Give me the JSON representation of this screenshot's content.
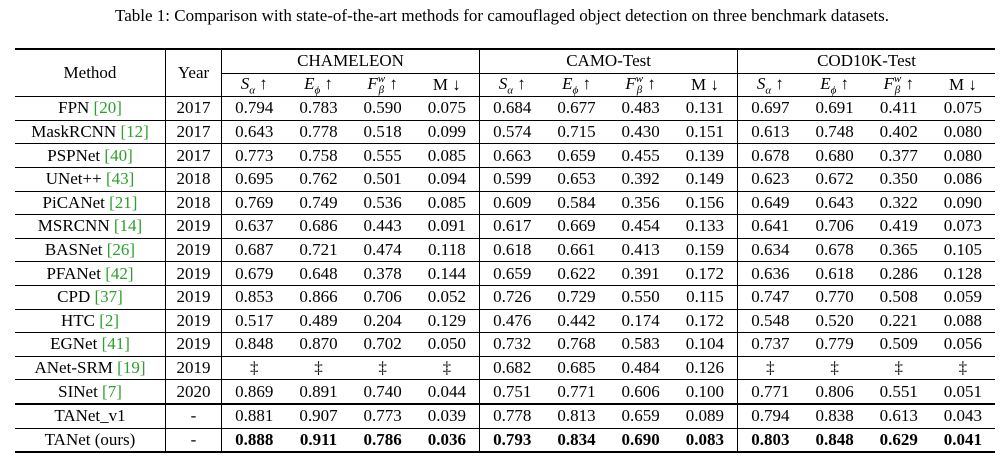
{
  "caption": "Table 1: Comparison with state-of-the-art methods for camouflaged object detection on three benchmark datasets.",
  "header": {
    "method": "Method",
    "year": "Year",
    "datasets": [
      "CHAMELEON",
      "CAMO-Test",
      "COD10K-Test"
    ],
    "metrics": [
      {
        "base": "S",
        "sub": "α",
        "arrow": "↑"
      },
      {
        "base": "E",
        "sub": "ϕ",
        "arrow": "↑"
      },
      {
        "base": "F",
        "sub": "β",
        "sup": "w",
        "arrow": "↑"
      },
      {
        "base": "M",
        "arrow": "↓"
      }
    ]
  },
  "rows": [
    {
      "method": "FPN",
      "ref": "[20]",
      "year": "2017",
      "values": [
        "0.794",
        "0.783",
        "0.590",
        "0.075",
        "0.684",
        "0.677",
        "0.483",
        "0.131",
        "0.697",
        "0.691",
        "0.411",
        "0.075"
      ]
    },
    {
      "method": "MaskRCNN",
      "ref": "[12]",
      "year": "2017",
      "values": [
        "0.643",
        "0.778",
        "0.518",
        "0.099",
        "0.574",
        "0.715",
        "0.430",
        "0.151",
        "0.613",
        "0.748",
        "0.402",
        "0.080"
      ]
    },
    {
      "method": "PSPNet",
      "ref": "[40]",
      "year": "2017",
      "values": [
        "0.773",
        "0.758",
        "0.555",
        "0.085",
        "0.663",
        "0.659",
        "0.455",
        "0.139",
        "0.678",
        "0.680",
        "0.377",
        "0.080"
      ]
    },
    {
      "method": "UNet++",
      "ref": "[43]",
      "year": "2018",
      "values": [
        "0.695",
        "0.762",
        "0.501",
        "0.094",
        "0.599",
        "0.653",
        "0.392",
        "0.149",
        "0.623",
        "0.672",
        "0.350",
        "0.086"
      ]
    },
    {
      "method": "PiCANet",
      "ref": "[21]",
      "year": "2018",
      "values": [
        "0.769",
        "0.749",
        "0.536",
        "0.085",
        "0.609",
        "0.584",
        "0.356",
        "0.156",
        "0.649",
        "0.643",
        "0.322",
        "0.090"
      ]
    },
    {
      "method": "MSRCNN",
      "ref": "[14]",
      "year": "2019",
      "values": [
        "0.637",
        "0.686",
        "0.443",
        "0.091",
        "0.617",
        "0.669",
        "0.454",
        "0.133",
        "0.641",
        "0.706",
        "0.419",
        "0.073"
      ]
    },
    {
      "method": "BASNet",
      "ref": "[26]",
      "year": "2019",
      "values": [
        "0.687",
        "0.721",
        "0.474",
        "0.118",
        "0.618",
        "0.661",
        "0.413",
        "0.159",
        "0.634",
        "0.678",
        "0.365",
        "0.105"
      ]
    },
    {
      "method": "PFANet",
      "ref": "[42]",
      "year": "2019",
      "values": [
        "0.679",
        "0.648",
        "0.378",
        "0.144",
        "0.659",
        "0.622",
        "0.391",
        "0.172",
        "0.636",
        "0.618",
        "0.286",
        "0.128"
      ]
    },
    {
      "method": "CPD",
      "ref": "[37]",
      "year": "2019",
      "values": [
        "0.853",
        "0.866",
        "0.706",
        "0.052",
        "0.726",
        "0.729",
        "0.550",
        "0.115",
        "0.747",
        "0.770",
        "0.508",
        "0.059"
      ]
    },
    {
      "method": "HTC",
      "ref": "[2]",
      "year": "2019",
      "values": [
        "0.517",
        "0.489",
        "0.204",
        "0.129",
        "0.476",
        "0.442",
        "0.174",
        "0.172",
        "0.548",
        "0.520",
        "0.221",
        "0.088"
      ]
    },
    {
      "method": "EGNet",
      "ref": "[41]",
      "year": "2019",
      "values": [
        "0.848",
        "0.870",
        "0.702",
        "0.050",
        "0.732",
        "0.768",
        "0.583",
        "0.104",
        "0.737",
        "0.779",
        "0.509",
        "0.056"
      ]
    },
    {
      "method": "ANet-SRM",
      "ref": "[19]",
      "year": "2019",
      "values": [
        "‡",
        "‡",
        "‡",
        "‡",
        "0.682",
        "0.685",
        "0.484",
        "0.126",
        "‡",
        "‡",
        "‡",
        "‡"
      ]
    },
    {
      "method": "SINet",
      "ref": "[7]",
      "year": "2020",
      "values": [
        "0.869",
        "0.891",
        "0.740",
        "0.044",
        "0.751",
        "0.771",
        "0.606",
        "0.100",
        "0.771",
        "0.806",
        "0.551",
        "0.051"
      ]
    },
    {
      "method": "TANet_v1",
      "year": "-",
      "values": [
        "0.881",
        "0.907",
        "0.773",
        "0.039",
        "0.778",
        "0.813",
        "0.659",
        "0.089",
        "0.794",
        "0.838",
        "0.613",
        "0.043"
      ]
    },
    {
      "method": "TANet (ours)",
      "year": "-",
      "bold": true,
      "values": [
        "0.888",
        "0.911",
        "0.786",
        "0.036",
        "0.793",
        "0.834",
        "0.690",
        "0.083",
        "0.803",
        "0.848",
        "0.629",
        "0.041"
      ]
    }
  ]
}
